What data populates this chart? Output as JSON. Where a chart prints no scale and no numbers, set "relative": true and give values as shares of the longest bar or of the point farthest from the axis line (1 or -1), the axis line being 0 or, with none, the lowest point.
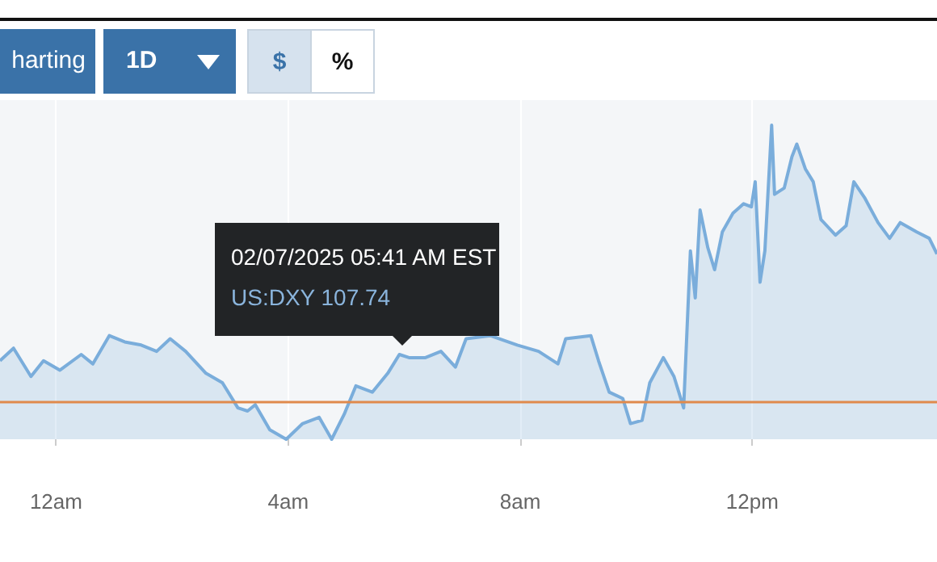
{
  "chart_data": {
    "type": "area",
    "relative": true,
    "annotations": [
      "harting",
      "1D",
      "$",
      "%",
      "02/07/2025 05:41 AM EST",
      "US:DXY  107.74"
    ],
    "x": [
      "2025-02-06T23:02",
      "2025-02-06T23:16",
      "2025-02-06T23:34",
      "2025-02-06T23:47",
      "2025-02-07T00:04",
      "2025-02-07T00:26",
      "2025-02-07T00:38",
      "2025-02-07T00:55",
      "2025-02-07T01:11",
      "2025-02-07T01:28",
      "2025-02-07T01:44",
      "2025-02-07T01:58",
      "2025-02-07T02:14",
      "2025-02-07T02:35",
      "2025-02-07T02:52",
      "2025-02-07T03:08",
      "2025-02-07T03:18",
      "2025-02-07T03:26",
      "2025-02-07T03:41",
      "2025-02-07T03:58",
      "2025-02-07T04:15",
      "2025-02-07T04:32",
      "2025-02-07T04:45",
      "2025-02-07T04:58",
      "2025-02-07T05:10",
      "2025-02-07T05:27",
      "2025-02-07T05:43",
      "2025-02-07T05:55",
      "2025-02-07T06:05",
      "2025-02-07T06:22",
      "2025-02-07T06:38",
      "2025-02-07T06:53",
      "2025-02-07T07:04",
      "2025-02-07T07:29",
      "2025-02-07T07:57",
      "2025-02-07T08:19",
      "2025-02-07T08:39",
      "2025-02-07T08:47",
      "2025-02-07T09:13",
      "2025-02-07T09:21",
      "2025-02-07T09:32",
      "2025-02-07T09:46",
      "2025-02-07T09:54",
      "2025-02-07T10:06",
      "2025-02-07T10:14",
      "2025-02-07T10:28",
      "2025-02-07T10:39",
      "2025-02-07T10:49",
      "2025-02-07T10:56",
      "2025-02-07T11:01",
      "2025-02-07T11:06",
      "2025-02-07T11:14",
      "2025-02-07T11:21",
      "2025-02-07T11:29",
      "2025-02-07T11:40",
      "2025-02-07T11:51",
      "2025-02-07T11:59",
      "2025-02-07T12:03",
      "2025-02-07T12:08",
      "2025-02-07T12:13",
      "2025-02-07T12:20",
      "2025-02-07T12:23",
      "2025-02-07T12:33",
      "2025-02-07T12:41",
      "2025-02-07T12:46",
      "2025-02-07T12:55",
      "2025-02-07T13:03",
      "2025-02-07T13:11",
      "2025-02-07T13:26",
      "2025-02-07T13:37",
      "2025-02-07T13:45",
      "2025-02-07T13:56",
      "2025-02-07T14:10",
      "2025-02-07T14:22",
      "2025-02-07T14:33",
      "2025-02-07T14:50",
      "2025-02-07T15:03",
      "2025-02-07T15:11"
    ],
    "series": [
      {
        "color": "#7aaddb",
        "values": [
          0.25,
          0.29,
          0.2,
          0.25,
          0.22,
          0.27,
          0.24,
          0.33,
          0.31,
          0.3,
          0.28,
          0.32,
          0.28,
          0.21,
          0.18,
          0.1,
          0.09,
          0.11,
          0.03,
          0,
          0.05,
          0.07,
          0,
          0.08,
          0.17,
          0.15,
          0.21,
          0.27,
          0.26,
          0.26,
          0.28,
          0.23,
          0.32,
          0.33,
          0.3,
          0.28,
          0.24,
          0.32,
          0.33,
          0.25,
          0.15,
          0.13,
          0.05,
          0.06,
          0.18,
          0.26,
          0.2,
          0.1,
          0.6,
          0.45,
          0.73,
          0.61,
          0.54,
          0.66,
          0.72,
          0.75,
          0.74,
          0.82,
          0.5,
          0.6,
          1,
          0.78,
          0.8,
          0.9,
          0.94,
          0.86,
          0.82,
          0.7,
          0.65,
          0.68,
          0.82,
          0.77,
          0.69,
          0.64,
          0.69,
          0.66,
          0.64,
          0.59
        ]
      }
    ],
    "xlim": [
      "2025-02-06T23:02",
      "2025-02-07T15:11"
    ],
    "xticks": [
      {
        "value": "2025-02-07T00:00",
        "label": "12am"
      },
      {
        "value": "2025-02-07T04:00",
        "label": "4am"
      },
      {
        "value": "2025-02-07T08:00",
        "label": "8am"
      },
      {
        "value": "2025-02-07T12:00",
        "label": "12pm"
      }
    ],
    "ref_lines": [
      {
        "axis": "y",
        "value": 0.12,
        "color": "#e08a4c"
      }
    ],
    "grid": "x",
    "marker": "none",
    "line_style": "solid"
  }
}
